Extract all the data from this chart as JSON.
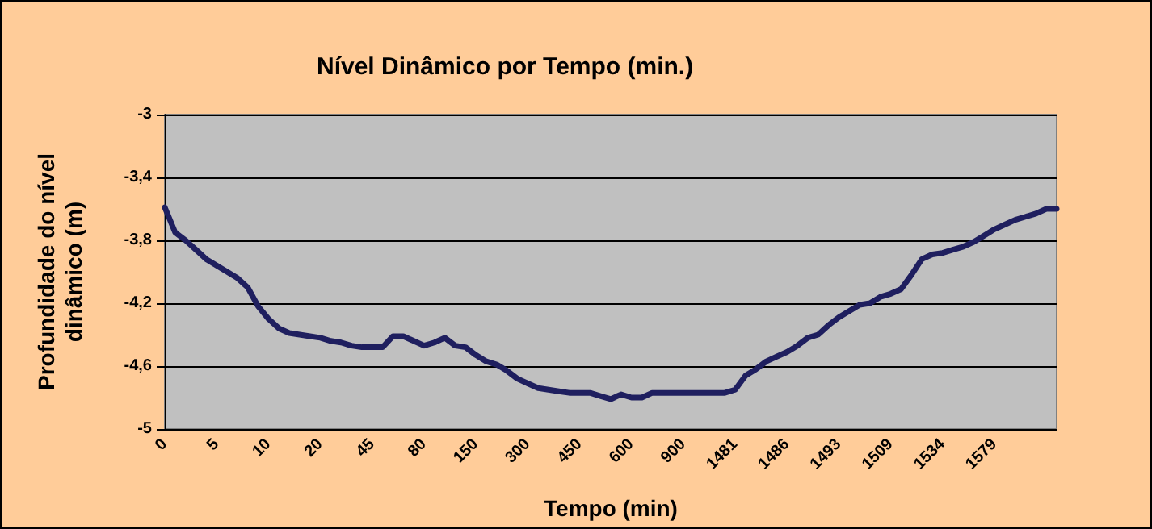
{
  "chart_data": {
    "type": "line",
    "title": "Nível Dinâmico por Tempo (min.)",
    "xlabel": "Tempo (min)",
    "ylabel": "Profundidade do nível dinâmico (m)",
    "categories": [
      "0",
      null,
      null,
      null,
      null,
      "5",
      null,
      null,
      null,
      null,
      "10",
      null,
      null,
      null,
      null,
      "20",
      null,
      null,
      null,
      null,
      "45",
      null,
      null,
      null,
      null,
      "80",
      null,
      null,
      null,
      null,
      "150",
      null,
      null,
      null,
      null,
      "300",
      null,
      null,
      null,
      null,
      "450",
      null,
      null,
      null,
      null,
      "600",
      null,
      null,
      null,
      null,
      "900",
      null,
      null,
      null,
      null,
      "1481",
      null,
      null,
      null,
      null,
      "1486",
      null,
      null,
      null,
      null,
      "1493",
      null,
      null,
      null,
      null,
      "1509",
      null,
      null,
      null,
      null,
      "1534",
      null,
      null,
      null,
      null,
      "1579",
      null,
      null,
      null,
      null,
      null,
      null
    ],
    "series": [
      {
        "color": "#1f1f5f",
        "values": [
          -3.59,
          -3.75,
          -3.8,
          -3.86,
          -3.92,
          -3.96,
          -4.0,
          -4.04,
          -4.1,
          -4.22,
          -4.3,
          -4.36,
          -4.39,
          -4.4,
          -4.41,
          -4.42,
          -4.44,
          -4.45,
          -4.47,
          -4.48,
          -4.48,
          -4.48,
          -4.41,
          -4.41,
          -4.44,
          -4.47,
          -4.45,
          -4.42,
          -4.47,
          -4.48,
          -4.53,
          -4.57,
          -4.59,
          -4.63,
          -4.68,
          -4.71,
          -4.74,
          -4.75,
          -4.76,
          -4.77,
          -4.77,
          -4.77,
          -4.79,
          -4.81,
          -4.78,
          -4.8,
          -4.8,
          -4.77,
          -4.77,
          -4.77,
          -4.77,
          -4.77,
          -4.77,
          -4.77,
          -4.77,
          -4.75,
          -4.66,
          -4.62,
          -4.57,
          -4.54,
          -4.51,
          -4.47,
          -4.42,
          -4.4,
          -4.34,
          -4.29,
          -4.25,
          -4.21,
          -4.2,
          -4.16,
          -4.14,
          -4.11,
          -4.02,
          -3.92,
          -3.89,
          -3.88,
          -3.86,
          -3.84,
          -3.81,
          -3.77,
          -3.73,
          -3.7,
          -3.67,
          -3.65,
          -3.63,
          -3.6,
          -3.6
        ]
      }
    ],
    "ylim": [
      -5,
      -3
    ],
    "yticks": [
      {
        "value": -5,
        "label": "-5"
      },
      {
        "value": -4.6,
        "label": "-4,6"
      },
      {
        "value": -4.2,
        "label": "-4,2"
      },
      {
        "value": -3.8,
        "label": "-3,8"
      },
      {
        "value": -3.4,
        "label": "-3,4"
      },
      {
        "value": -3,
        "label": "-3"
      }
    ],
    "grid": "y",
    "marker": "none",
    "line_style": "solid"
  }
}
